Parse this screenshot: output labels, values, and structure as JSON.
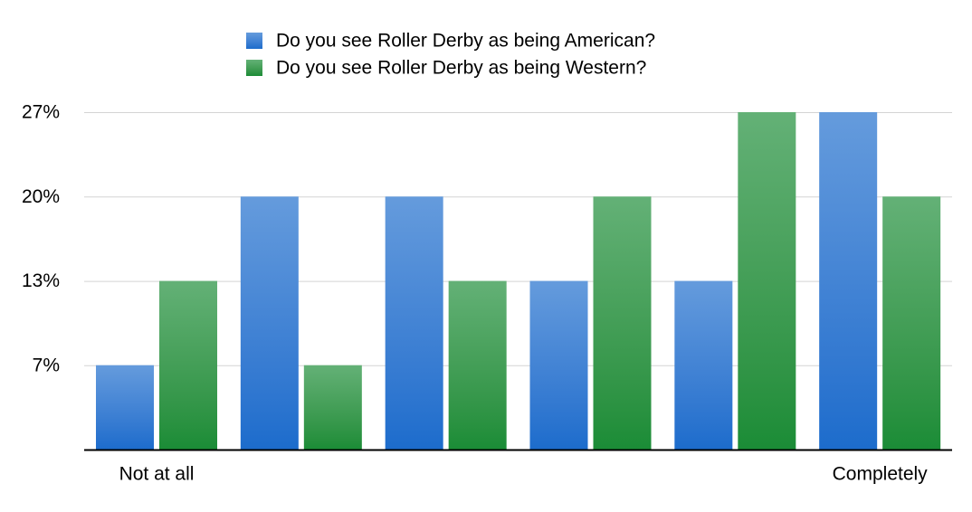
{
  "chart_data": {
    "type": "bar",
    "categories": [
      "Not at all",
      null,
      null,
      null,
      null,
      "Completely"
    ],
    "series": [
      {
        "name": "Do you see Roller Derby as being American?",
        "color": "#1c6ccc",
        "values": [
          6.67,
          20,
          20,
          13.33,
          13.33,
          26.67
        ]
      },
      {
        "name": "Do you see Roller Derby as being Western?",
        "color": "#1a8c36",
        "values": [
          13.33,
          6.67,
          13.33,
          20,
          26.67,
          20
        ]
      }
    ],
    "ylim": [
      0,
      26.67
    ],
    "yticks": [
      {
        "value": 6.67,
        "label": "7%"
      },
      {
        "value": 13.33,
        "label": "13%"
      },
      {
        "value": 20,
        "label": "20%"
      },
      {
        "value": 26.67,
        "label": "27%"
      }
    ],
    "grid": true
  }
}
